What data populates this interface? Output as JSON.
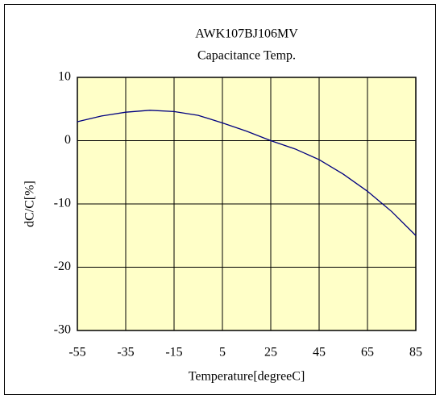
{
  "chart_data": {
    "type": "line",
    "title": "AWK107BJ106MV",
    "subtitle": "Capacitance Temp.",
    "x_label": "Temperature[degreeC]",
    "y_label": "dC/C[%]",
    "x": [
      -55,
      -45,
      -35,
      -25,
      -15,
      -5,
      5,
      15,
      25,
      35,
      45,
      55,
      65,
      75,
      85
    ],
    "series": [
      {
        "name": "AWK107BJ106MV",
        "color": "#000080",
        "values": [
          3.0,
          3.9,
          4.5,
          4.8,
          4.6,
          4.0,
          2.8,
          1.5,
          0,
          -1.3,
          -3.0,
          -5.3,
          -8.0,
          -11.2,
          -15.0
        ]
      }
    ],
    "xlim": [
      -55,
      85
    ],
    "xticks": [
      -55,
      -35,
      -15,
      5,
      25,
      45,
      65,
      85
    ],
    "ylim": [
      -30,
      10
    ],
    "yticks": [
      -30,
      -20,
      -10,
      0,
      10
    ],
    "grid": true,
    "plot_background": "#ffffc8"
  }
}
